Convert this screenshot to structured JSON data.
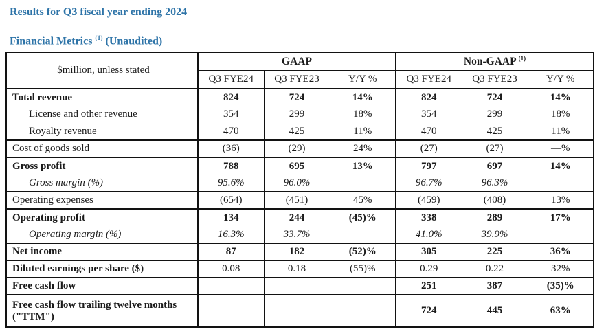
{
  "page": {
    "accent_color": "#2e74a8",
    "title_line1": "Results for Q3 fiscal year ending 2024",
    "title_line2_main": "Financial Metrics",
    "title_line2_sup": "(1)",
    "title_line2_suffix": "(Unaudited)"
  },
  "table": {
    "corner_label": "$million, unless stated",
    "groups": [
      {
        "label": "GAAP",
        "sup": ""
      },
      {
        "label": "Non-GAAP",
        "sup": "(1)"
      }
    ],
    "subheaders": [
      "Q3 FYE24",
      "Q3 FYE23",
      "Y/Y %",
      "Q3 FYE24",
      "Q3 FYE23",
      "Y/Y %"
    ],
    "rows": [
      {
        "label": "Total revenue",
        "indent": 0,
        "label_bold": true,
        "values_bold": true,
        "italic": false,
        "group_start": true,
        "tall": false,
        "values": [
          "824",
          "724",
          "14%",
          "824",
          "724",
          "14%"
        ]
      },
      {
        "label": "License and other revenue",
        "indent": 1,
        "label_bold": false,
        "values_bold": false,
        "italic": false,
        "group_start": false,
        "tall": false,
        "values": [
          "354",
          "299",
          "18%",
          "354",
          "299",
          "18%"
        ]
      },
      {
        "label": "Royalty revenue",
        "indent": 1,
        "label_bold": false,
        "values_bold": false,
        "italic": false,
        "group_start": false,
        "tall": false,
        "values": [
          "470",
          "425",
          "11%",
          "470",
          "425",
          "11%"
        ]
      },
      {
        "label": "Cost of goods sold",
        "indent": 0,
        "label_bold": false,
        "values_bold": false,
        "italic": false,
        "group_start": true,
        "tall": false,
        "values": [
          "(36)",
          "(29)",
          "24%",
          "(27)",
          "(27)",
          "—%"
        ]
      },
      {
        "label": "Gross profit",
        "indent": 0,
        "label_bold": true,
        "values_bold": true,
        "italic": false,
        "group_start": true,
        "tall": false,
        "values": [
          "788",
          "695",
          "13%",
          "797",
          "697",
          "14%"
        ]
      },
      {
        "label": "Gross margin (%)",
        "indent": 1,
        "label_bold": false,
        "values_bold": false,
        "italic": true,
        "group_start": false,
        "tall": false,
        "values": [
          "95.6%",
          "96.0%",
          "",
          "96.7%",
          "96.3%",
          ""
        ]
      },
      {
        "label": "Operating expenses",
        "indent": 0,
        "label_bold": false,
        "values_bold": false,
        "italic": false,
        "group_start": true,
        "tall": false,
        "values": [
          "(654)",
          "(451)",
          "45%",
          "(459)",
          "(408)",
          "13%"
        ]
      },
      {
        "label": "Operating profit",
        "indent": 0,
        "label_bold": true,
        "values_bold": true,
        "italic": false,
        "group_start": true,
        "tall": false,
        "values": [
          "134",
          "244",
          "(45)%",
          "338",
          "289",
          "17%"
        ]
      },
      {
        "label": "Operating margin (%)",
        "indent": 1,
        "label_bold": false,
        "values_bold": false,
        "italic": true,
        "group_start": false,
        "tall": false,
        "values": [
          "16.3%",
          "33.7%",
          "",
          "41.0%",
          "39.9%",
          ""
        ]
      },
      {
        "label": "Net income",
        "indent": 0,
        "label_bold": true,
        "values_bold": true,
        "italic": false,
        "group_start": true,
        "tall": false,
        "values": [
          "87",
          "182",
          "(52)%",
          "305",
          "225",
          "36%"
        ]
      },
      {
        "label": "Diluted earnings per share ($)",
        "indent": 0,
        "label_bold": true,
        "values_bold": false,
        "italic": false,
        "group_start": true,
        "tall": false,
        "values": [
          "0.08",
          "0.18",
          "(55)%",
          "0.29",
          "0.22",
          "32%"
        ]
      },
      {
        "label": "Free cash flow",
        "indent": 0,
        "label_bold": true,
        "values_bold": true,
        "italic": false,
        "group_start": true,
        "tall": false,
        "values": [
          "",
          "",
          "",
          "251",
          "387",
          "(35)%"
        ]
      },
      {
        "label": "Free cash flow trailing twelve months (\"TTM\")",
        "indent": 0,
        "label_bold": true,
        "values_bold": true,
        "italic": false,
        "group_start": true,
        "tall": true,
        "values": [
          "",
          "",
          "",
          "724",
          "445",
          "63%"
        ]
      }
    ]
  }
}
